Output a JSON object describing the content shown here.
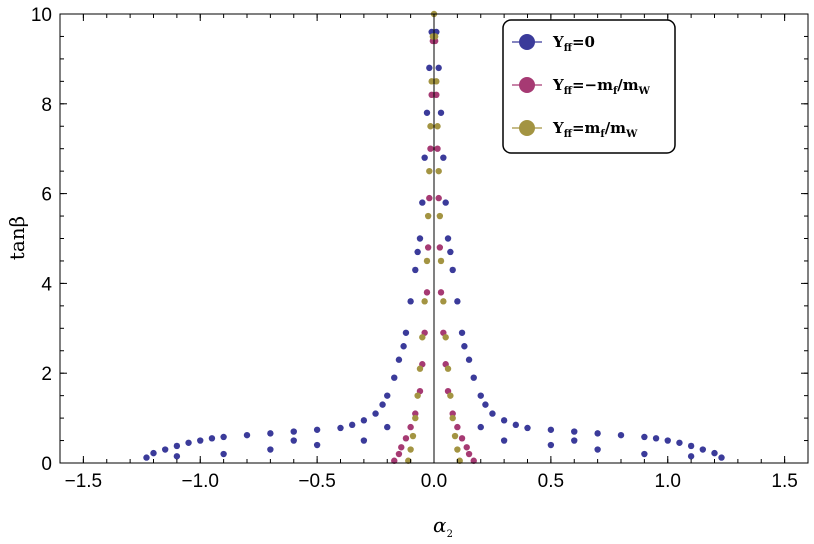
{
  "chart_data": {
    "type": "scatter",
    "title": "",
    "xlabel": "α",
    "xlabel_sub": "2",
    "ylabel": "tanβ",
    "xlim": [
      -1.6,
      1.6
    ],
    "ylim": [
      0,
      10
    ],
    "x_ticks": [
      -1.5,
      -1.0,
      -0.5,
      0.0,
      0.5,
      1.0,
      1.5
    ],
    "x_tick_labels": [
      "−1.5",
      "−1.0",
      "−0.5",
      "0.0",
      "0.5",
      "1.0",
      "1.5"
    ],
    "y_ticks": [
      0,
      2,
      4,
      6,
      8,
      10
    ],
    "y_tick_labels": [
      "0",
      "2",
      "4",
      "6",
      "8",
      "10"
    ],
    "grid": false,
    "frame": true,
    "vertical_line_at_x": 0,
    "legend_position": "top-right",
    "series": [
      {
        "name": "Yff=0",
        "legend": {
          "base": "Y",
          "sub": "ff",
          "rest": "=0"
        },
        "color": "#3b3b9a",
        "points": [
          [
            -1.23,
            0.12
          ],
          [
            -1.2,
            0.22
          ],
          [
            -1.15,
            0.3
          ],
          [
            -1.1,
            0.38
          ],
          [
            -1.05,
            0.45
          ],
          [
            -1.0,
            0.5
          ],
          [
            -0.95,
            0.55
          ],
          [
            -0.9,
            0.58
          ],
          [
            -0.8,
            0.62
          ],
          [
            -0.7,
            0.66
          ],
          [
            -0.6,
            0.7
          ],
          [
            -0.5,
            0.74
          ],
          [
            -0.4,
            0.78
          ],
          [
            -0.35,
            0.85
          ],
          [
            -0.3,
            0.95
          ],
          [
            -0.25,
            1.1
          ],
          [
            -0.22,
            1.3
          ],
          [
            -0.2,
            1.5
          ],
          [
            -0.17,
            1.9
          ],
          [
            -0.15,
            2.3
          ],
          [
            -0.12,
            2.9
          ],
          [
            -0.1,
            3.6
          ],
          [
            -0.08,
            4.3
          ],
          [
            -0.06,
            5.0
          ],
          [
            -0.05,
            5.8
          ],
          [
            -0.04,
            6.8
          ],
          [
            -0.03,
            7.8
          ],
          [
            -0.02,
            8.8
          ],
          [
            -0.01,
            9.6
          ],
          [
            1.23,
            0.12
          ],
          [
            1.2,
            0.22
          ],
          [
            1.15,
            0.3
          ],
          [
            1.1,
            0.38
          ],
          [
            1.05,
            0.45
          ],
          [
            1.0,
            0.5
          ],
          [
            0.95,
            0.55
          ],
          [
            0.9,
            0.58
          ],
          [
            0.8,
            0.62
          ],
          [
            0.7,
            0.66
          ],
          [
            0.6,
            0.7
          ],
          [
            0.5,
            0.74
          ],
          [
            0.4,
            0.78
          ],
          [
            0.35,
            0.85
          ],
          [
            0.3,
            0.95
          ],
          [
            0.25,
            1.1
          ],
          [
            0.22,
            1.3
          ],
          [
            0.2,
            1.5
          ],
          [
            0.17,
            1.9
          ],
          [
            0.15,
            2.3
          ],
          [
            0.12,
            2.9
          ],
          [
            0.1,
            3.6
          ],
          [
            0.08,
            4.3
          ],
          [
            0.06,
            5.0
          ],
          [
            0.05,
            5.8
          ],
          [
            0.04,
            6.8
          ],
          [
            0.03,
            7.8
          ],
          [
            0.02,
            8.8
          ],
          [
            0.01,
            9.6
          ],
          [
            -1.1,
            0.15
          ],
          [
            -0.9,
            0.2
          ],
          [
            -0.7,
            0.3
          ],
          [
            -0.5,
            0.4
          ],
          [
            -0.3,
            0.5
          ],
          [
            0.3,
            0.5
          ],
          [
            0.5,
            0.4
          ],
          [
            0.7,
            0.3
          ],
          [
            0.9,
            0.2
          ],
          [
            1.1,
            0.15
          ],
          [
            -0.6,
            0.5
          ],
          [
            0.6,
            0.5
          ],
          [
            -0.2,
            0.8
          ],
          [
            0.2,
            0.8
          ],
          [
            -0.13,
            2.6
          ],
          [
            0.13,
            2.6
          ],
          [
            -0.07,
            4.7
          ],
          [
            0.07,
            4.7
          ]
        ]
      },
      {
        "name": "Yff=−mf/mW",
        "legend": {
          "base": "Y",
          "sub": "ff",
          "rest": "=−m",
          "sub2": "f",
          "rest2": "/m",
          "sub3": "W"
        },
        "color": "#a63a73",
        "points": [
          [
            -0.17,
            0.05
          ],
          [
            -0.15,
            0.2
          ],
          [
            -0.14,
            0.35
          ],
          [
            -0.12,
            0.55
          ],
          [
            -0.1,
            0.8
          ],
          [
            -0.08,
            1.1
          ],
          [
            -0.06,
            1.6
          ],
          [
            -0.05,
            2.2
          ],
          [
            -0.04,
            2.9
          ],
          [
            -0.03,
            3.8
          ],
          [
            -0.025,
            4.8
          ],
          [
            -0.02,
            5.9
          ],
          [
            -0.015,
            7.0
          ],
          [
            -0.01,
            8.2
          ],
          [
            -0.005,
            9.4
          ],
          [
            0.17,
            0.05
          ],
          [
            0.15,
            0.2
          ],
          [
            0.14,
            0.35
          ],
          [
            0.12,
            0.55
          ],
          [
            0.1,
            0.8
          ],
          [
            0.08,
            1.1
          ],
          [
            0.06,
            1.6
          ],
          [
            0.05,
            2.2
          ],
          [
            0.04,
            2.9
          ],
          [
            0.03,
            3.8
          ],
          [
            0.025,
            4.8
          ],
          [
            0.02,
            5.9
          ],
          [
            0.015,
            7.0
          ],
          [
            0.01,
            8.2
          ],
          [
            0.005,
            9.4
          ]
        ]
      },
      {
        "name": "Yff=mf/mW",
        "legend": {
          "base": "Y",
          "sub": "ff",
          "rest": "=m",
          "sub2": "f",
          "rest2": "/m",
          "sub3": "W"
        },
        "color": "#a39442",
        "points": [
          [
            -0.11,
            0.05
          ],
          [
            -0.1,
            0.3
          ],
          [
            -0.09,
            0.6
          ],
          [
            -0.08,
            1.0
          ],
          [
            -0.07,
            1.5
          ],
          [
            -0.06,
            2.1
          ],
          [
            -0.05,
            2.8
          ],
          [
            -0.04,
            3.6
          ],
          [
            -0.03,
            4.5
          ],
          [
            -0.025,
            5.5
          ],
          [
            -0.02,
            6.5
          ],
          [
            -0.015,
            7.5
          ],
          [
            -0.01,
            8.5
          ],
          [
            -0.005,
            9.5
          ],
          [
            0.0,
            10.0
          ],
          [
            0.11,
            0.05
          ],
          [
            0.1,
            0.3
          ],
          [
            0.09,
            0.6
          ],
          [
            0.08,
            1.0
          ],
          [
            0.07,
            1.5
          ],
          [
            0.06,
            2.1
          ],
          [
            0.05,
            2.8
          ],
          [
            0.04,
            3.6
          ],
          [
            0.03,
            4.5
          ],
          [
            0.025,
            5.5
          ],
          [
            0.02,
            6.5
          ],
          [
            0.015,
            7.5
          ],
          [
            0.01,
            8.5
          ],
          [
            0.005,
            9.5
          ]
        ]
      }
    ]
  }
}
